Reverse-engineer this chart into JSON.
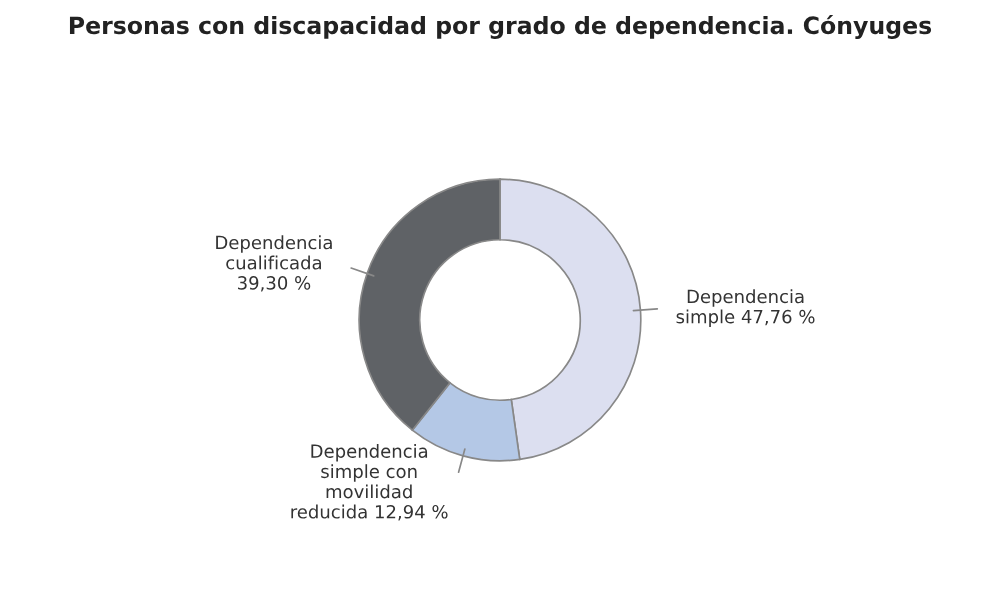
{
  "chart_data": {
    "type": "donut",
    "title": "Personas con discapacidad por grado de dependencia. Cónyuges",
    "categories": [
      "Dependencia\nsimple 47,76 %",
      "Dependencia\nsimple con\nmovilidad\nreducida 12,94 %",
      "Dependencia\ncualificada\n39,30 %"
    ],
    "values": [
      47.76,
      12.94,
      39.3
    ],
    "colors": [
      "#dcdff0",
      "#b4c8e6",
      "#5f6266"
    ]
  }
}
